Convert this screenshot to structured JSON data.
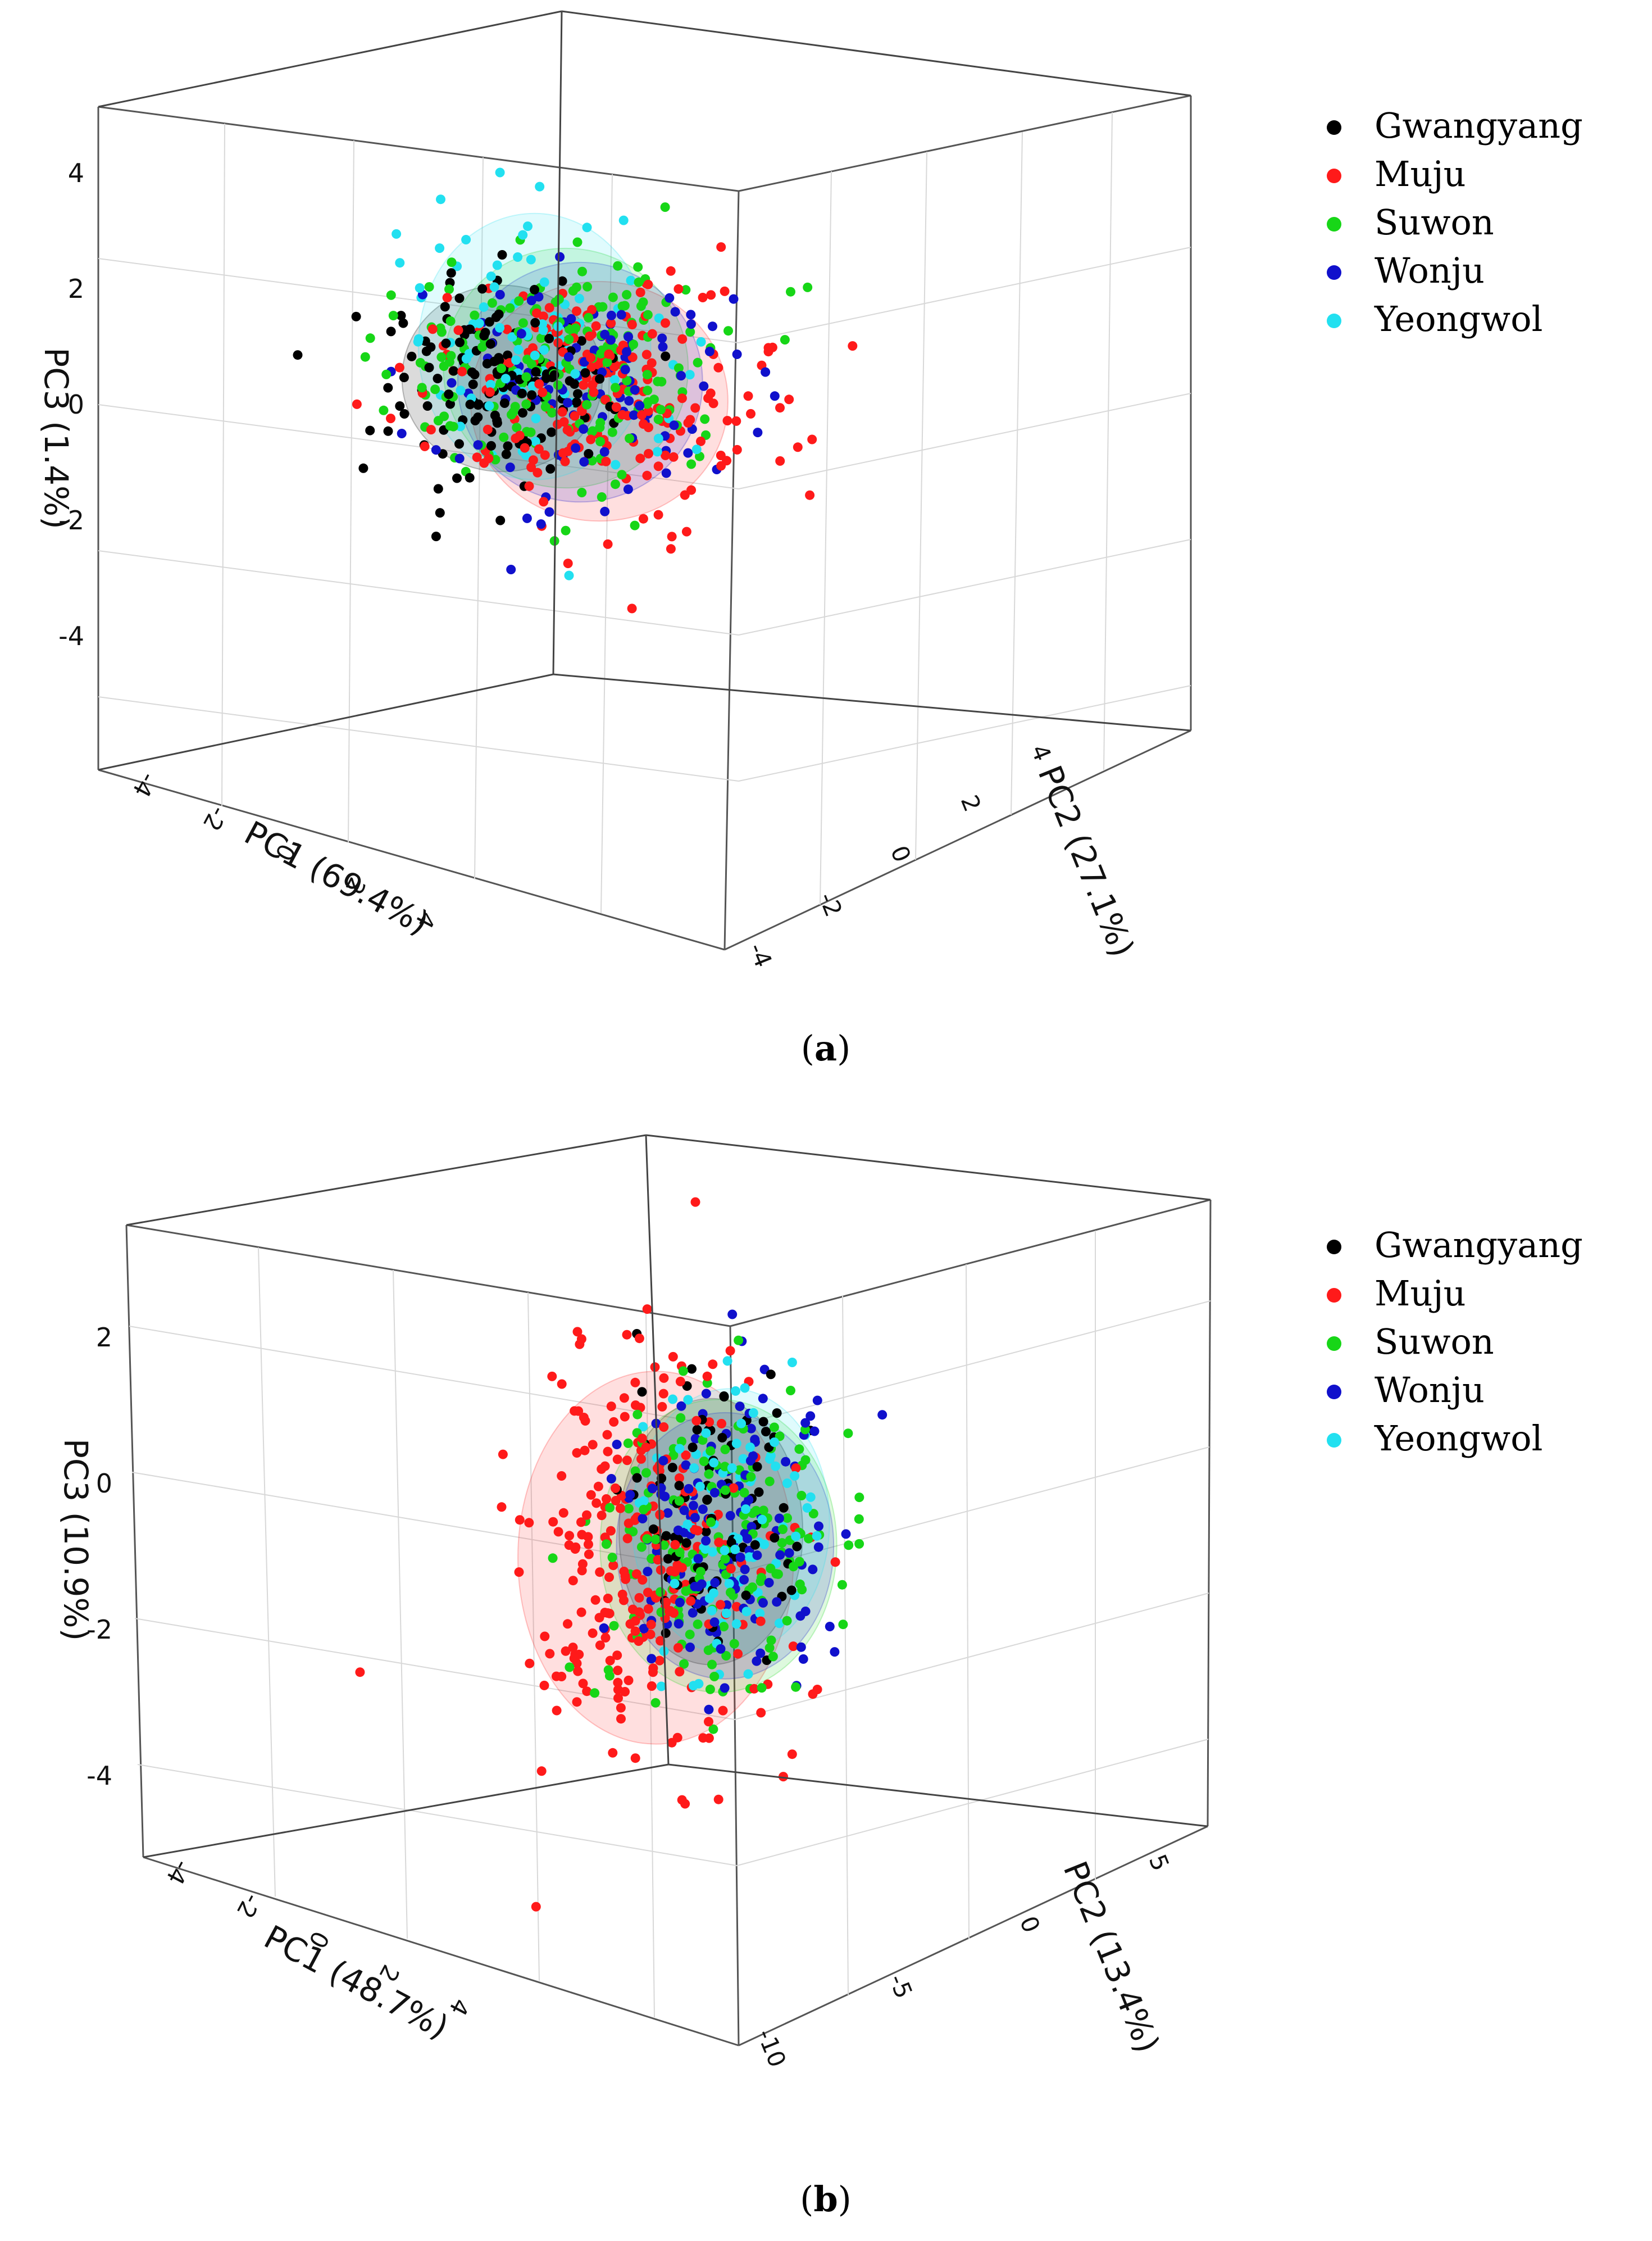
{
  "chart_data": [
    {
      "type": "scatter",
      "subplot": "3d",
      "caption": "(a)",
      "caption_letter": "a",
      "xlabel": "PC1 (69.4%)",
      "ylabel": "PC2 (27.1%)",
      "zlabel": "PC3 (1.4%)",
      "x_ticks": [
        "-4",
        "-2",
        "0",
        "2",
        "4"
      ],
      "y_ticks": [
        "-4",
        "-2",
        "0",
        "2",
        "4"
      ],
      "z_ticks": [
        "-4",
        "-2",
        "0",
        "2",
        "4"
      ],
      "xlim": [
        -5,
        5
      ],
      "ylim": [
        -4,
        4
      ],
      "zlim": [
        -5,
        4
      ],
      "grid": true,
      "legend_position": "top-right",
      "series": [
        {
          "name": "Gwangyang",
          "color": "#000000",
          "centroid": [
            -0.8,
            0.6,
            0.0
          ],
          "spread": [
            1.1,
            0.9,
            0.7
          ],
          "n": 150
        },
        {
          "name": "Muju",
          "color": "#ff1a1a",
          "centroid": [
            0.3,
            -0.4,
            -0.5
          ],
          "spread": [
            1.5,
            1.0,
            0.9
          ],
          "n": 220
        },
        {
          "name": "Suwon",
          "color": "#17d617",
          "centroid": [
            0.4,
            0.5,
            0.4
          ],
          "spread": [
            1.4,
            1.0,
            0.9
          ],
          "n": 200
        },
        {
          "name": "Wonju",
          "color": "#1010cc",
          "centroid": [
            0.0,
            -0.3,
            -0.2
          ],
          "spread": [
            1.4,
            1.0,
            0.9
          ],
          "n": 110
        },
        {
          "name": "Yeongwol",
          "color": "#22e0f0",
          "centroid": [
            0.2,
            1.0,
            0.9
          ],
          "spread": [
            1.3,
            1.0,
            1.0
          ],
          "n": 90
        }
      ]
    },
    {
      "type": "scatter",
      "subplot": "3d",
      "caption": "(b)",
      "caption_letter": "b",
      "xlabel": "PC1 (48.7%)",
      "ylabel": "PC2 (13.4%)",
      "zlabel": "PC3 (10.9%)",
      "x_ticks": [
        "-4",
        "-2",
        "0",
        "2",
        "4"
      ],
      "y_ticks": [
        "-10",
        "-5",
        "0",
        "5"
      ],
      "z_ticks": [
        "-4",
        "-2",
        "0",
        "2"
      ],
      "xlim": [
        -5,
        5
      ],
      "ylim": [
        -10,
        5
      ],
      "zlim": [
        -5,
        3.5
      ],
      "grid": true,
      "legend_position": "top-right",
      "series": [
        {
          "name": "Gwangyang",
          "color": "#000000",
          "centroid": [
            -0.2,
            -0.8,
            0.1
          ],
          "spread": [
            0.8,
            1.2,
            1.0
          ],
          "n": 90
        },
        {
          "name": "Muju",
          "color": "#ff1a1a",
          "centroid": [
            -1.3,
            -0.6,
            -0.4
          ],
          "spread": [
            1.2,
            1.8,
            1.4
          ],
          "n": 260
        },
        {
          "name": "Suwon",
          "color": "#17d617",
          "centroid": [
            0.5,
            0.3,
            0.2
          ],
          "spread": [
            1.0,
            1.6,
            1.1
          ],
          "n": 170
        },
        {
          "name": "Wonju",
          "color": "#1010cc",
          "centroid": [
            0.4,
            -0.2,
            0.1
          ],
          "spread": [
            0.9,
            1.5,
            1.0
          ],
          "n": 140
        },
        {
          "name": "Yeongwol",
          "color": "#22e0f0",
          "centroid": [
            1.4,
            1.6,
            0.9
          ],
          "spread": [
            0.8,
            1.4,
            1.0
          ],
          "n": 90
        }
      ]
    }
  ]
}
